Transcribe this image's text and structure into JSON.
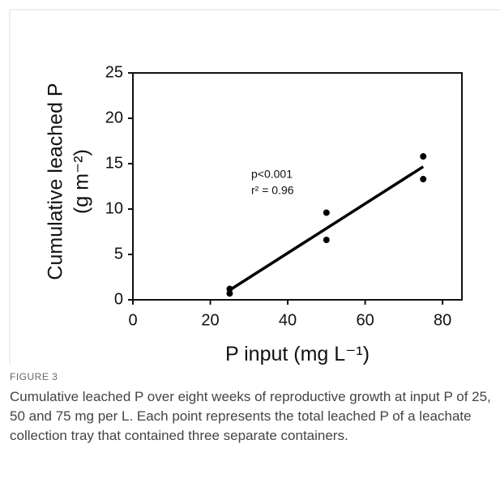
{
  "chart_data": {
    "type": "scatter",
    "y_label": [
      "Cumulative leached P",
      "(g m⁻²)"
    ],
    "x_label": "P input (mg L⁻¹)",
    "annotations": [
      "p<0.001",
      "r² = 0.96"
    ],
    "series": [
      {
        "name": null,
        "color": "#000000",
        "x": [
          25,
          25,
          50,
          50,
          75,
          75
        ],
        "values": [
          1.2,
          0.7,
          9.6,
          6.6,
          15.8,
          13.3
        ]
      }
    ],
    "fit": {
      "x": [
        25,
        75
      ],
      "values": [
        1.07,
        14.67
      ],
      "color": "#000000"
    },
    "xlim": [
      0,
      85
    ],
    "xticks": [
      0,
      20,
      40,
      60,
      80
    ],
    "ylim": [
      0,
      25
    ],
    "yticks": [
      0,
      5,
      10,
      15,
      20,
      25
    ]
  },
  "caption": {
    "label": "FIGURE 3",
    "text": "Cumulative leached P over eight weeks of reproductive growth at input P of 25, 50 and 75 mg per L. Each point represents the total leached P of a leachate collection tray that contained three separate containers."
  }
}
